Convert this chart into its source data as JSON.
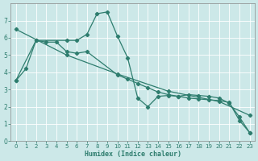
{
  "xlabel": "Humidex (Indice chaleur)",
  "xlim": [
    -0.5,
    23.5
  ],
  "ylim": [
    0,
    8
  ],
  "xticks": [
    0,
    1,
    2,
    3,
    4,
    5,
    6,
    7,
    8,
    9,
    10,
    11,
    12,
    13,
    14,
    15,
    16,
    17,
    18,
    19,
    20,
    21,
    22,
    23
  ],
  "yticks": [
    0,
    1,
    2,
    3,
    4,
    5,
    6,
    7
  ],
  "bg_color": "#cce8e8",
  "grid_color": "#b0d4d4",
  "line_color": "#2e7d6e",
  "line1_x": [
    0,
    1,
    2,
    5,
    6,
    7,
    8,
    9,
    10,
    11,
    12,
    13,
    14,
    15,
    16,
    17,
    18,
    19,
    20,
    21,
    22,
    23
  ],
  "line1_y": [
    3.5,
    4.2,
    5.85,
    5.85,
    5.85,
    6.2,
    7.4,
    7.5,
    6.1,
    4.85,
    2.5,
    2.0,
    2.6,
    2.65,
    2.6,
    2.7,
    2.65,
    2.6,
    2.5,
    2.2,
    1.4,
    0.5
  ],
  "line2_x": [
    0,
    2,
    3,
    4,
    5,
    6,
    7,
    10,
    11,
    12,
    13,
    14,
    15,
    16,
    17,
    18,
    19,
    20,
    21,
    22,
    23
  ],
  "line2_y": [
    3.5,
    5.85,
    5.75,
    5.75,
    5.2,
    5.1,
    5.2,
    3.85,
    3.6,
    3.35,
    3.1,
    2.85,
    2.7,
    2.6,
    2.5,
    2.45,
    2.4,
    2.35,
    2.25,
    1.2,
    0.5
  ],
  "line3_x": [
    0,
    5,
    10,
    15,
    20,
    23
  ],
  "line3_y": [
    6.5,
    5.0,
    3.9,
    2.9,
    2.3,
    1.5
  ]
}
